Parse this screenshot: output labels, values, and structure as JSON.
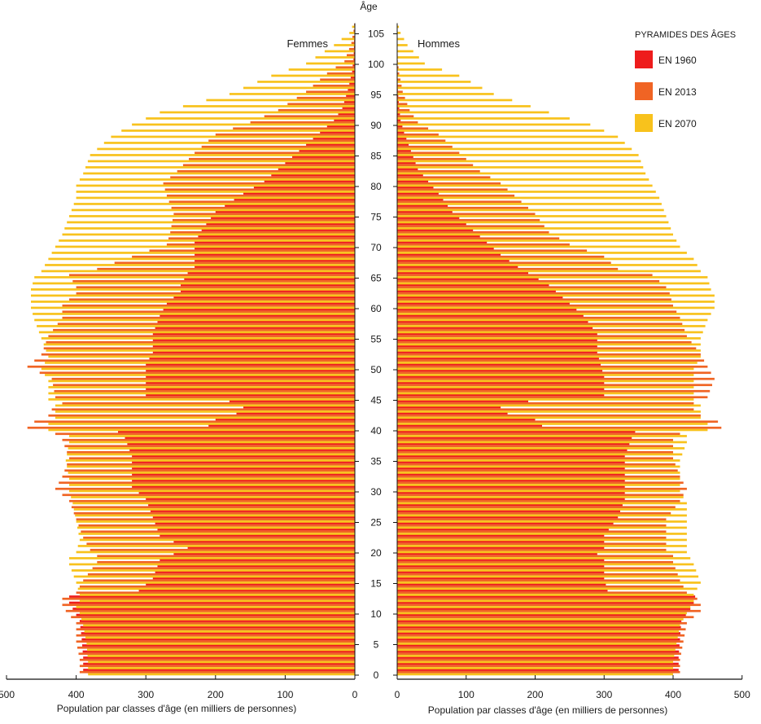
{
  "chart_data": {
    "type": "bar",
    "orientation": "horizontal",
    "subtype": "population-pyramid",
    "age_axis": {
      "label": "Âge",
      "ticks": [
        0,
        5,
        10,
        15,
        20,
        25,
        30,
        35,
        40,
        45,
        50,
        55,
        60,
        65,
        70,
        75,
        80,
        85,
        90,
        95,
        100,
        105
      ],
      "range": [
        0,
        107
      ]
    },
    "sides": [
      {
        "name": "Femmes",
        "position": "left"
      },
      {
        "name": "Hommes",
        "position": "right"
      }
    ],
    "x_axis": {
      "label": "Population par classes d'âge (en milliers de personnes)",
      "ticks_left": [
        500,
        400,
        300,
        200,
        100,
        0
      ],
      "ticks_right": [
        0,
        100,
        200,
        300,
        400,
        500
      ],
      "range": [
        0,
        500
      ]
    },
    "legend": {
      "title": "PYRAMIDES DES ÂGES",
      "placement": "top-right",
      "entries": [
        {
          "label": "EN 1960",
          "color": "#ee1c1c",
          "series": "1960"
        },
        {
          "label": "EN 2013",
          "color": "#f06424",
          "series": "2013"
        },
        {
          "label": "EN 2070",
          "color": "#f8c21c",
          "series": "2070"
        }
      ]
    },
    "keypoints": {
      "ages": [
        0,
        2,
        5,
        8,
        10,
        11,
        12,
        13,
        15,
        18,
        19,
        20,
        22,
        25,
        28,
        30,
        32,
        35,
        38,
        39,
        40,
        41,
        42,
        43,
        44,
        45,
        48,
        50,
        52,
        55,
        58,
        60,
        62,
        63,
        65,
        66,
        68,
        70,
        72,
        75,
        78,
        80,
        82,
        85,
        88,
        90,
        92,
        95,
        98,
        100,
        103,
        105,
        107
      ],
      "series": [
        {
          "name": "1960",
          "color": "#ee1c1c",
          "femmes": [
            390,
            390,
            392,
            395,
            405,
            410,
            410,
            310,
            290,
            280,
            260,
            240,
            280,
            290,
            300,
            320,
            320,
            320,
            330,
            340,
            210,
            200,
            170,
            160,
            180,
            300,
            300,
            300,
            290,
            290,
            280,
            270,
            250,
            250,
            240,
            230,
            230,
            230,
            220,
            200,
            160,
            130,
            110,
            80,
            50,
            30,
            18,
            10,
            4,
            2,
            1,
            0,
            0
          ],
          "hommes": [
            408,
            408,
            410,
            412,
            425,
            430,
            432,
            305,
            300,
            300,
            290,
            300,
            300,
            320,
            330,
            330,
            330,
            330,
            340,
            345,
            210,
            200,
            160,
            150,
            190,
            300,
            300,
            295,
            290,
            290,
            270,
            250,
            230,
            220,
            190,
            175,
            150,
            130,
            110,
            80,
            60,
            45,
            30,
            20,
            10,
            5,
            3,
            1,
            0,
            0,
            0,
            0,
            0
          ]
        },
        {
          "name": "2013",
          "color": "#f06424",
          "femmes": [
            395,
            395,
            400,
            400,
            415,
            420,
            420,
            400,
            390,
            370,
            370,
            380,
            390,
            400,
            410,
            430,
            420,
            410,
            420,
            430,
            470,
            460,
            440,
            435,
            420,
            430,
            435,
            470,
            450,
            440,
            420,
            420,
            400,
            400,
            410,
            370,
            320,
            270,
            265,
            260,
            270,
            275,
            255,
            230,
            200,
            150,
            110,
            70,
            40,
            15,
            5,
            2,
            0
          ],
          "hommes": [
            410,
            410,
            415,
            420,
            440,
            440,
            435,
            420,
            410,
            400,
            400,
            390,
            390,
            390,
            410,
            420,
            410,
            400,
            400,
            410,
            470,
            465,
            440,
            430,
            430,
            450,
            460,
            450,
            440,
            420,
            410,
            400,
            395,
            390,
            370,
            320,
            300,
            250,
            220,
            200,
            170,
            150,
            120,
            90,
            60,
            30,
            18,
            8,
            3,
            1,
            0,
            0,
            0
          ]
        },
        {
          "name": "2070",
          "color": "#f8c21c",
          "femmes": [
            383,
            383,
            385,
            390,
            395,
            400,
            395,
            395,
            400,
            410,
            410,
            400,
            395,
            400,
            405,
            410,
            410,
            415,
            410,
            410,
            440,
            440,
            430,
            430,
            430,
            440,
            440,
            450,
            440,
            450,
            460,
            465,
            465,
            465,
            460,
            450,
            440,
            430,
            420,
            410,
            400,
            400,
            390,
            380,
            350,
            320,
            280,
            180,
            120,
            70,
            30,
            8,
            0
          ],
          "hommes": [
            400,
            400,
            405,
            410,
            420,
            425,
            430,
            430,
            440,
            430,
            425,
            420,
            420,
            420,
            420,
            410,
            410,
            410,
            420,
            420,
            450,
            450,
            440,
            440,
            440,
            430,
            430,
            430,
            440,
            440,
            450,
            460,
            460,
            455,
            450,
            440,
            430,
            410,
            400,
            390,
            380,
            370,
            360,
            350,
            320,
            280,
            220,
            140,
            90,
            40,
            15,
            5,
            0
          ]
        }
      ]
    }
  }
}
